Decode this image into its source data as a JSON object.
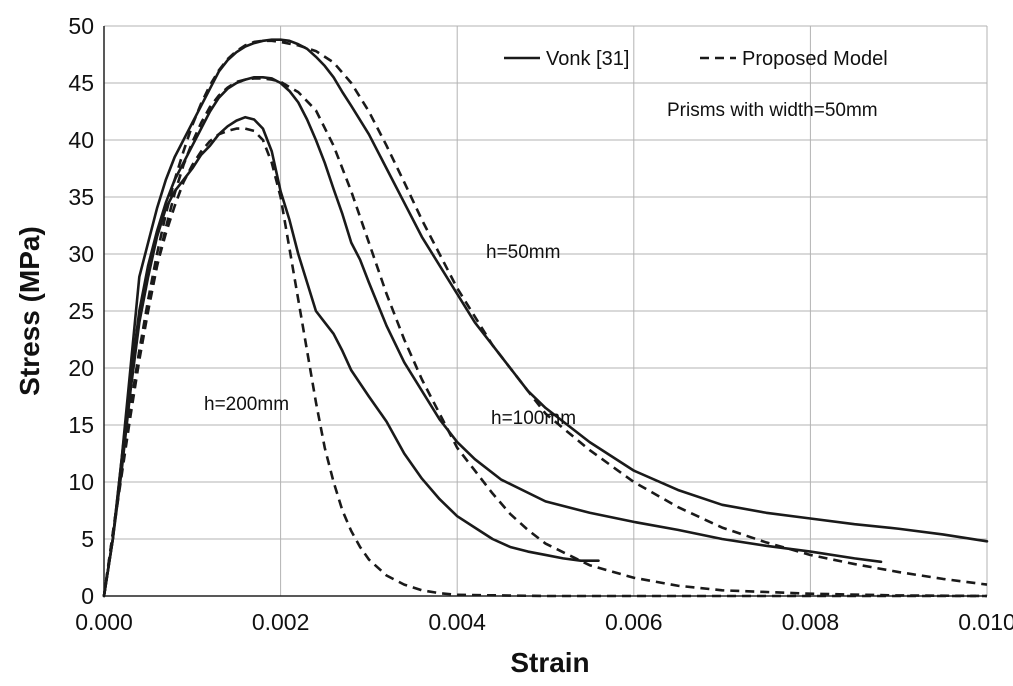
{
  "chart_data": {
    "type": "line",
    "title": "",
    "xlabel": "Strain",
    "ylabel": "Stress (MPa)",
    "xlim": [
      0,
      0.01
    ],
    "ylim": [
      0,
      50
    ],
    "x_ticks": [
      0,
      0.002,
      0.004,
      0.006,
      0.008,
      0.01
    ],
    "x_tick_labels": [
      "0.000",
      "0.002",
      "0.004",
      "0.006",
      "0.008",
      "0.010"
    ],
    "y_ticks": [
      0,
      5,
      10,
      15,
      20,
      25,
      30,
      35,
      40,
      45,
      50
    ],
    "y_tick_labels": [
      "0",
      "5",
      "10",
      "15",
      "20",
      "25",
      "30",
      "35",
      "40",
      "45",
      "50"
    ],
    "grid": true,
    "legend_position": "top-right",
    "legend": [
      {
        "label": "Vonk [31]",
        "style": "solid"
      },
      {
        "label": "Proposed Model",
        "style": "dashed"
      }
    ],
    "annotations": [
      {
        "text": "Prisms with width=50mm",
        "x": 0.0064,
        "y": 42
      },
      {
        "text": "h=50mm",
        "x": 0.0044,
        "y": 30
      },
      {
        "text": "h=100mm",
        "x": 0.0044,
        "y": 15
      },
      {
        "text": "h=200mm",
        "x": 0.0011,
        "y": 16.5
      }
    ],
    "series": [
      {
        "group": "h=50mm",
        "style": "solid",
        "points": [
          [
            0,
            0
          ],
          [
            0.0001,
            5
          ],
          [
            0.0002,
            12
          ],
          [
            0.0003,
            20
          ],
          [
            0.0004,
            28
          ],
          [
            0.0005,
            31
          ],
          [
            0.0006,
            34
          ],
          [
            0.0007,
            36.5
          ],
          [
            0.0008,
            38.5
          ],
          [
            0.0009,
            40
          ],
          [
            0.001,
            41.5
          ],
          [
            0.0011,
            43
          ],
          [
            0.0012,
            44.5
          ],
          [
            0.0013,
            46
          ],
          [
            0.0014,
            47
          ],
          [
            0.0015,
            47.7
          ],
          [
            0.0016,
            48.2
          ],
          [
            0.0017,
            48.5
          ],
          [
            0.0018,
            48.7
          ],
          [
            0.0019,
            48.8
          ],
          [
            0.002,
            48.8
          ],
          [
            0.0021,
            48.7
          ],
          [
            0.0022,
            48.4
          ],
          [
            0.0023,
            48
          ],
          [
            0.0024,
            47.3
          ],
          [
            0.0025,
            46.5
          ],
          [
            0.0026,
            45.5
          ],
          [
            0.0027,
            44.2
          ],
          [
            0.0028,
            43
          ],
          [
            0.003,
            40.5
          ],
          [
            0.0032,
            37.5
          ],
          [
            0.0034,
            34.5
          ],
          [
            0.0036,
            31.5
          ],
          [
            0.0038,
            29
          ],
          [
            0.004,
            26.5
          ],
          [
            0.0042,
            24
          ],
          [
            0.0044,
            22
          ],
          [
            0.0046,
            20
          ],
          [
            0.0048,
            18
          ],
          [
            0.005,
            16.5
          ],
          [
            0.0055,
            13.5
          ],
          [
            0.006,
            11
          ],
          [
            0.0065,
            9.3
          ],
          [
            0.007,
            8
          ],
          [
            0.0075,
            7.3
          ],
          [
            0.008,
            6.8
          ],
          [
            0.0085,
            6.3
          ],
          [
            0.009,
            5.9
          ],
          [
            0.0095,
            5.4
          ],
          [
            0.01,
            4.8
          ]
        ]
      },
      {
        "group": "h=50mm",
        "style": "dashed",
        "points": [
          [
            0,
            0
          ],
          [
            0.0001,
            5.5
          ],
          [
            0.0002,
            11
          ],
          [
            0.0003,
            16.5
          ],
          [
            0.0004,
            21.5
          ],
          [
            0.0005,
            26
          ],
          [
            0.0006,
            30
          ],
          [
            0.0007,
            33.5
          ],
          [
            0.0008,
            36.5
          ],
          [
            0.0009,
            39
          ],
          [
            0.001,
            41.3
          ],
          [
            0.0011,
            43.2
          ],
          [
            0.0012,
            44.8
          ],
          [
            0.0013,
            46.1
          ],
          [
            0.0014,
            47.1
          ],
          [
            0.0015,
            47.8
          ],
          [
            0.0016,
            48.3
          ],
          [
            0.0017,
            48.6
          ],
          [
            0.0018,
            48.7
          ],
          [
            0.0019,
            48.7
          ],
          [
            0.002,
            48.6
          ],
          [
            0.0022,
            48.3
          ],
          [
            0.0024,
            47.8
          ],
          [
            0.0026,
            46.8
          ],
          [
            0.0028,
            45
          ],
          [
            0.003,
            42.5
          ],
          [
            0.0032,
            39.5
          ],
          [
            0.0034,
            36.3
          ],
          [
            0.0036,
            33
          ],
          [
            0.0038,
            30
          ],
          [
            0.004,
            27
          ],
          [
            0.0042,
            24.5
          ],
          [
            0.0044,
            22
          ],
          [
            0.0046,
            20
          ],
          [
            0.0048,
            18
          ],
          [
            0.005,
            16
          ],
          [
            0.0055,
            12.8
          ],
          [
            0.006,
            10
          ],
          [
            0.0065,
            7.8
          ],
          [
            0.007,
            6
          ],
          [
            0.0075,
            4.7
          ],
          [
            0.008,
            3.6
          ],
          [
            0.0085,
            2.8
          ],
          [
            0.009,
            2.1
          ],
          [
            0.0095,
            1.5
          ],
          [
            0.01,
            1
          ]
        ]
      },
      {
        "group": "h=100mm",
        "style": "solid",
        "points": [
          [
            0,
            0
          ],
          [
            0.0001,
            5
          ],
          [
            0.0002,
            12
          ],
          [
            0.0003,
            19
          ],
          [
            0.0004,
            25
          ],
          [
            0.0005,
            29
          ],
          [
            0.0006,
            32
          ],
          [
            0.0007,
            34.5
          ],
          [
            0.0008,
            36.5
          ],
          [
            0.0009,
            38
          ],
          [
            0.001,
            39.5
          ],
          [
            0.0011,
            41
          ],
          [
            0.0012,
            42.5
          ],
          [
            0.0013,
            43.7
          ],
          [
            0.0014,
            44.5
          ],
          [
            0.0015,
            45
          ],
          [
            0.0016,
            45.3
          ],
          [
            0.0017,
            45.5
          ],
          [
            0.0018,
            45.5
          ],
          [
            0.0019,
            45.4
          ],
          [
            0.002,
            45
          ],
          [
            0.0021,
            44.3
          ],
          [
            0.0022,
            43.3
          ],
          [
            0.0023,
            41.8
          ],
          [
            0.0024,
            40
          ],
          [
            0.0025,
            38
          ],
          [
            0.0026,
            35.7
          ],
          [
            0.0027,
            33.5
          ],
          [
            0.0028,
            31
          ],
          [
            0.0029,
            29.5
          ],
          [
            0.003,
            27.5
          ],
          [
            0.0032,
            23.7
          ],
          [
            0.0034,
            20.5
          ],
          [
            0.0036,
            18
          ],
          [
            0.0038,
            15.5
          ],
          [
            0.004,
            13.5
          ],
          [
            0.0042,
            12
          ],
          [
            0.0045,
            10.2
          ],
          [
            0.005,
            8.3
          ],
          [
            0.0055,
            7.3
          ],
          [
            0.006,
            6.5
          ],
          [
            0.0065,
            5.8
          ],
          [
            0.007,
            5
          ],
          [
            0.0075,
            4.4
          ],
          [
            0.008,
            3.9
          ],
          [
            0.0085,
            3.3
          ],
          [
            0.0088,
            3
          ]
        ]
      },
      {
        "group": "h=100mm",
        "style": "dashed",
        "points": [
          [
            0,
            0
          ],
          [
            0.0001,
            5.3
          ],
          [
            0.0002,
            10.6
          ],
          [
            0.0003,
            15.8
          ],
          [
            0.0004,
            20.7
          ],
          [
            0.0005,
            25
          ],
          [
            0.0006,
            28.9
          ],
          [
            0.0007,
            32.3
          ],
          [
            0.0008,
            35.3
          ],
          [
            0.0009,
            37.8
          ],
          [
            0.001,
            39.8
          ],
          [
            0.0011,
            41.5
          ],
          [
            0.0012,
            42.9
          ],
          [
            0.0013,
            43.9
          ],
          [
            0.0014,
            44.6
          ],
          [
            0.0015,
            45.1
          ],
          [
            0.0016,
            45.3
          ],
          [
            0.0017,
            45.4
          ],
          [
            0.0018,
            45.4
          ],
          [
            0.0019,
            45.3
          ],
          [
            0.002,
            45.1
          ],
          [
            0.0022,
            44.2
          ],
          [
            0.0024,
            42.6
          ],
          [
            0.0026,
            39.5
          ],
          [
            0.0028,
            35.5
          ],
          [
            0.003,
            31
          ],
          [
            0.0032,
            26.5
          ],
          [
            0.0034,
            22.5
          ],
          [
            0.0036,
            19
          ],
          [
            0.0038,
            16
          ],
          [
            0.004,
            13
          ],
          [
            0.0042,
            11
          ],
          [
            0.0044,
            9
          ],
          [
            0.0046,
            7.2
          ],
          [
            0.0048,
            5.8
          ],
          [
            0.005,
            4.6
          ],
          [
            0.0055,
            2.7
          ],
          [
            0.006,
            1.6
          ],
          [
            0.0065,
            0.9
          ],
          [
            0.007,
            0.5
          ],
          [
            0.008,
            0.2
          ],
          [
            0.009,
            0.05
          ],
          [
            0.01,
            0
          ]
        ]
      },
      {
        "group": "h=200mm",
        "style": "solid",
        "points": [
          [
            0,
            0
          ],
          [
            0.0001,
            5
          ],
          [
            0.0002,
            11
          ],
          [
            0.0003,
            18
          ],
          [
            0.0004,
            24
          ],
          [
            0.0005,
            28
          ],
          [
            0.0006,
            31.5
          ],
          [
            0.0007,
            34
          ],
          [
            0.0008,
            35.5
          ],
          [
            0.0009,
            36.5
          ],
          [
            0.001,
            37.5
          ],
          [
            0.0011,
            38.7
          ],
          [
            0.0012,
            39.5
          ],
          [
            0.0013,
            40.5
          ],
          [
            0.0014,
            41.2
          ],
          [
            0.0015,
            41.7
          ],
          [
            0.0016,
            42
          ],
          [
            0.0017,
            41.8
          ],
          [
            0.0018,
            41
          ],
          [
            0.0019,
            39
          ],
          [
            0.002,
            35.5
          ],
          [
            0.0021,
            33
          ],
          [
            0.0022,
            30
          ],
          [
            0.0023,
            27.5
          ],
          [
            0.0024,
            25
          ],
          [
            0.0025,
            24
          ],
          [
            0.0026,
            23
          ],
          [
            0.0027,
            21.5
          ],
          [
            0.0028,
            19.8
          ],
          [
            0.003,
            17.5
          ],
          [
            0.0032,
            15.3
          ],
          [
            0.0034,
            12.5
          ],
          [
            0.0036,
            10.3
          ],
          [
            0.0038,
            8.5
          ],
          [
            0.004,
            7
          ],
          [
            0.0042,
            6
          ],
          [
            0.0044,
            5
          ],
          [
            0.0046,
            4.3
          ],
          [
            0.0048,
            3.9
          ],
          [
            0.005,
            3.6
          ],
          [
            0.0052,
            3.3
          ],
          [
            0.0054,
            3.1
          ],
          [
            0.0056,
            3.1
          ]
        ]
      },
      {
        "group": "h=200mm",
        "style": "dashed",
        "points": [
          [
            0,
            0
          ],
          [
            0.0001,
            5.5
          ],
          [
            0.0002,
            11
          ],
          [
            0.0003,
            16.5
          ],
          [
            0.0004,
            21.5
          ],
          [
            0.0005,
            25.5
          ],
          [
            0.0006,
            29
          ],
          [
            0.0007,
            31.8
          ],
          [
            0.0008,
            34.2
          ],
          [
            0.0009,
            36.3
          ],
          [
            0.001,
            37.8
          ],
          [
            0.0011,
            39
          ],
          [
            0.0012,
            39.9
          ],
          [
            0.0013,
            40.5
          ],
          [
            0.0014,
            40.8
          ],
          [
            0.0015,
            41
          ],
          [
            0.0016,
            41
          ],
          [
            0.0017,
            40.8
          ],
          [
            0.0018,
            40
          ],
          [
            0.0019,
            38
          ],
          [
            0.002,
            35
          ],
          [
            0.0021,
            30.5
          ],
          [
            0.0022,
            26
          ],
          [
            0.0023,
            21.5
          ],
          [
            0.0024,
            17
          ],
          [
            0.0025,
            13
          ],
          [
            0.0026,
            10
          ],
          [
            0.0027,
            7.5
          ],
          [
            0.0028,
            5.7
          ],
          [
            0.0029,
            4.3
          ],
          [
            0.003,
            3.2
          ],
          [
            0.0032,
            1.8
          ],
          [
            0.0034,
            1
          ],
          [
            0.0036,
            0.5
          ],
          [
            0.0038,
            0.25
          ],
          [
            0.004,
            0.1
          ],
          [
            0.005,
            0
          ],
          [
            0.01,
            0
          ]
        ]
      }
    ]
  }
}
